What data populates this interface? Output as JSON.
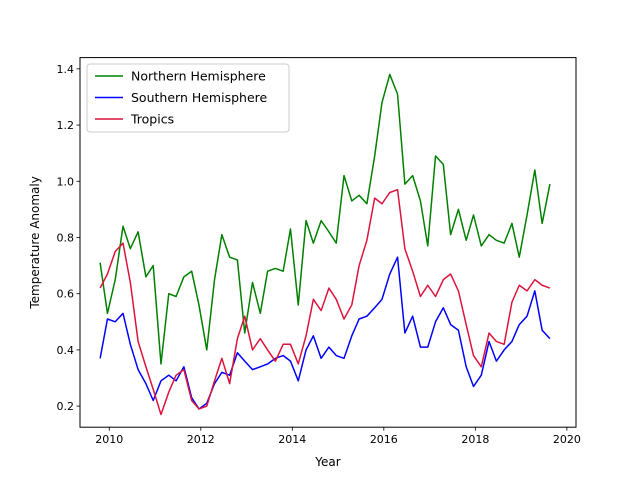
{
  "chart_data": {
    "type": "line",
    "xlabel": "Year",
    "ylabel": "Temperature Anomaly",
    "xlim": [
      2009.36,
      2020.2
    ],
    "ylim": [
      0.125,
      1.44
    ],
    "x_ticks": [
      2010,
      2012,
      2014,
      2016,
      2018,
      2020
    ],
    "y_ticks": [
      0.2,
      0.4,
      0.6,
      0.8,
      1.0,
      1.2,
      1.4
    ],
    "x_tick_labels": [
      "2010",
      "2012",
      "2014",
      "2016",
      "2018",
      "2020"
    ],
    "y_tick_labels": [
      "0.2",
      "0.4",
      "0.6",
      "0.8",
      "1.0",
      "1.2",
      "1.4"
    ],
    "legend_position": "top-left",
    "grid": false,
    "x": [
      2009.8,
      2009.96,
      2010.13,
      2010.3,
      2010.46,
      2010.63,
      2010.8,
      2010.96,
      2011.13,
      2011.3,
      2011.46,
      2011.63,
      2011.8,
      2011.96,
      2012.13,
      2012.3,
      2012.46,
      2012.63,
      2012.8,
      2012.96,
      2013.13,
      2013.3,
      2013.46,
      2013.63,
      2013.8,
      2013.96,
      2014.13,
      2014.3,
      2014.46,
      2014.63,
      2014.8,
      2014.96,
      2015.13,
      2015.3,
      2015.46,
      2015.63,
      2015.8,
      2015.96,
      2016.13,
      2016.3,
      2016.46,
      2016.63,
      2016.8,
      2016.96,
      2017.13,
      2017.3,
      2017.46,
      2017.63,
      2017.8,
      2017.96,
      2018.13,
      2018.3,
      2018.46,
      2018.63,
      2018.8,
      2018.96,
      2019.13,
      2019.3,
      2019.46,
      2019.63
    ],
    "series": [
      {
        "name": "Northern Hemisphere",
        "color": "#008000",
        "values": [
          0.71,
          0.53,
          0.65,
          0.84,
          0.76,
          0.82,
          0.66,
          0.7,
          0.35,
          0.6,
          0.59,
          0.66,
          0.68,
          0.56,
          0.4,
          0.65,
          0.81,
          0.73,
          0.72,
          0.46,
          0.64,
          0.53,
          0.68,
          0.69,
          0.68,
          0.83,
          0.56,
          0.86,
          0.78,
          0.86,
          0.82,
          0.78,
          1.02,
          0.93,
          0.95,
          0.92,
          1.09,
          1.28,
          1.38,
          1.31,
          0.99,
          1.02,
          0.93,
          0.77,
          1.09,
          1.06,
          0.81,
          0.9,
          0.79,
          0.88,
          0.77,
          0.81,
          0.79,
          0.78,
          0.85,
          0.73,
          0.88,
          1.04,
          0.85,
          0.99
        ]
      },
      {
        "name": "Southern Hemisphere",
        "color": "#0000ff",
        "values": [
          0.37,
          0.51,
          0.5,
          0.53,
          0.42,
          0.33,
          0.28,
          0.22,
          0.29,
          0.31,
          0.29,
          0.34,
          0.23,
          0.19,
          0.21,
          0.28,
          0.32,
          0.31,
          0.39,
          0.36,
          0.33,
          0.34,
          0.35,
          0.37,
          0.38,
          0.36,
          0.29,
          0.4,
          0.45,
          0.37,
          0.41,
          0.38,
          0.37,
          0.45,
          0.51,
          0.52,
          0.55,
          0.58,
          0.67,
          0.73,
          0.46,
          0.52,
          0.41,
          0.41,
          0.5,
          0.55,
          0.49,
          0.47,
          0.34,
          0.27,
          0.31,
          0.43,
          0.36,
          0.4,
          0.43,
          0.49,
          0.52,
          0.61,
          0.47,
          0.44
        ]
      },
      {
        "name": "Tropics",
        "color": "#dc143c",
        "values": [
          0.62,
          0.67,
          0.75,
          0.78,
          0.64,
          0.43,
          0.34,
          0.26,
          0.17,
          0.25,
          0.31,
          0.33,
          0.22,
          0.19,
          0.2,
          0.29,
          0.37,
          0.28,
          0.44,
          0.52,
          0.4,
          0.44,
          0.4,
          0.36,
          0.42,
          0.42,
          0.35,
          0.45,
          0.58,
          0.54,
          0.62,
          0.58,
          0.51,
          0.56,
          0.7,
          0.79,
          0.94,
          0.92,
          0.96,
          0.97,
          0.76,
          0.68,
          0.59,
          0.63,
          0.59,
          0.65,
          0.67,
          0.61,
          0.49,
          0.38,
          0.34,
          0.46,
          0.43,
          0.42,
          0.57,
          0.63,
          0.61,
          0.65,
          0.63,
          0.62
        ]
      }
    ]
  }
}
